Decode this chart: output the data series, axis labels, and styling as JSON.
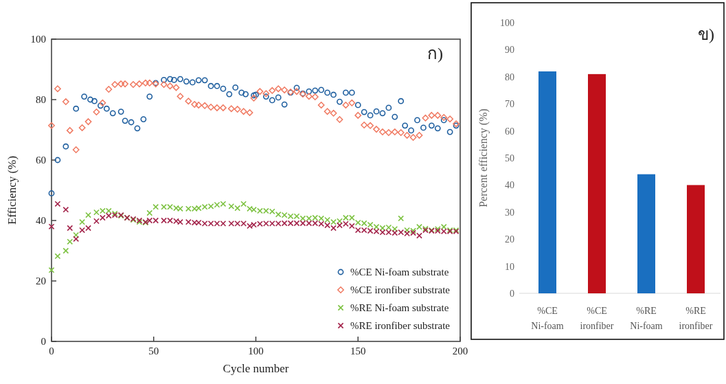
{
  "chart_data": [
    {
      "type": "scatter",
      "xlabel": "Cycle number",
      "ylabel": "Efficiency (%)",
      "xlim": [
        0,
        200
      ],
      "ylim": [
        0,
        100
      ],
      "xticks": [
        0,
        50,
        100,
        150,
        200
      ],
      "yticks": [
        0,
        20,
        40,
        60,
        80,
        100
      ],
      "grid": false,
      "legend": "bottom right",
      "annotations": [
        "ก)"
      ],
      "series": [
        {
          "name": "%CE Ni-foam substrate",
          "color": "#1f5f9f",
          "marker": "circle",
          "x": [
            0,
            3,
            7,
            12,
            16,
            19,
            21,
            24,
            27,
            30,
            34,
            36,
            39,
            42,
            45,
            48,
            51,
            55,
            58,
            60,
            63,
            66,
            69,
            72,
            75,
            78,
            81,
            84,
            87,
            90,
            93,
            95,
            99,
            100,
            105,
            108,
            111,
            114,
            117,
            120,
            123,
            126,
            129,
            132,
            135,
            138,
            141,
            144,
            147,
            150,
            153,
            156,
            159,
            162,
            165,
            168,
            171,
            173,
            176,
            179,
            182,
            186,
            189,
            192,
            195,
            198
          ],
          "values": [
            49,
            60,
            64.5,
            77,
            81,
            80,
            79.5,
            78,
            77,
            75.5,
            76,
            73,
            72.5,
            70.5,
            73.5,
            81,
            85.5,
            86.5,
            86.8,
            86.5,
            86.8,
            86,
            85.7,
            86.4,
            86.4,
            84.5,
            84.5,
            83.6,
            81.8,
            84,
            82.3,
            81.8,
            81.4,
            81.6,
            81,
            79.8,
            80.7,
            78.4,
            82.3,
            83.9,
            82,
            82.7,
            83,
            83.2,
            82.3,
            81.6,
            79.3,
            82.3,
            82.3,
            78.2,
            75.9,
            74.8,
            76.1,
            75.5,
            77.3,
            74.3,
            79.5,
            71.4,
            69.8,
            73.2,
            70.7,
            71.4,
            70.5,
            73.2,
            69.3,
            71.4
          ]
        },
        {
          "name": "%CE ironfiber substrate",
          "color": "#f07a62",
          "marker": "diamond",
          "x": [
            0,
            3,
            7,
            9,
            12,
            15,
            18,
            22,
            25,
            28,
            31,
            34,
            36,
            40,
            43,
            46,
            48,
            51,
            55,
            58,
            61,
            63,
            67,
            70,
            72,
            75,
            78,
            81,
            84,
            88,
            91,
            94,
            97,
            99,
            102,
            105,
            108,
            111,
            114,
            117,
            120,
            123,
            126,
            129,
            132,
            135,
            138,
            141,
            144,
            147,
            150,
            153,
            156,
            159,
            162,
            165,
            168,
            171,
            174,
            177,
            180,
            183,
            186,
            189,
            192,
            195,
            198
          ],
          "values": [
            71.4,
            83.6,
            79.3,
            69.8,
            63.4,
            70.7,
            72.7,
            75.9,
            78.9,
            83.4,
            85,
            85.2,
            85.2,
            85,
            85.2,
            85.5,
            85.5,
            85.2,
            85,
            84.5,
            84,
            81.1,
            79.5,
            78.4,
            78.2,
            78,
            77.5,
            77.3,
            77.3,
            77,
            76.8,
            76.1,
            75.7,
            80.5,
            82.7,
            82,
            83,
            83.6,
            83.2,
            82.5,
            82.7,
            81.8,
            81.1,
            80.9,
            78.2,
            76.1,
            75.5,
            73.4,
            78.2,
            78.9,
            74.8,
            71.6,
            71.4,
            70.2,
            69.3,
            69.1,
            69.3,
            69.1,
            68.2,
            67.5,
            68.2,
            73.9,
            74.8,
            74.8,
            74.1,
            73.6,
            72
          ]
        },
        {
          "name": "%RE Ni-foam substrate",
          "color": "#7dc242",
          "marker": "cross",
          "x": [
            0,
            3,
            7,
            9,
            12,
            15,
            18,
            22,
            25,
            28,
            31,
            34,
            37,
            40,
            43,
            46,
            48,
            51,
            55,
            58,
            61,
            63,
            67,
            70,
            72,
            75,
            78,
            81,
            84,
            88,
            91,
            94,
            97,
            99,
            102,
            105,
            108,
            111,
            114,
            117,
            120,
            123,
            126,
            129,
            132,
            135,
            138,
            141,
            144,
            147,
            150,
            153,
            156,
            159,
            162,
            165,
            168,
            171,
            174,
            177,
            180,
            183,
            186,
            189,
            192,
            195,
            198
          ],
          "values": [
            23.6,
            28.2,
            30,
            33,
            35.2,
            39.5,
            41.8,
            42.7,
            43.2,
            43.2,
            42.3,
            41.6,
            40.9,
            40.2,
            39.5,
            39.3,
            42.5,
            44.5,
            44.5,
            44.5,
            44.1,
            43.9,
            43.9,
            43.9,
            44.1,
            44.5,
            44.7,
            45.2,
            45.5,
            44.7,
            44.1,
            45.5,
            43.9,
            43.6,
            43.2,
            43.2,
            43,
            42,
            41.8,
            41.4,
            41.4,
            40.7,
            40.7,
            40.9,
            40.7,
            40.2,
            39.5,
            39.8,
            40.9,
            40.9,
            39.3,
            39.1,
            38.6,
            37.9,
            37.5,
            37.7,
            37.2,
            40.7,
            36.8,
            36.6,
            37.9,
            37.3,
            36.8,
            37.2,
            37.9,
            36.8,
            36.8
          ]
        },
        {
          "name": "%RE ironfiber substrate",
          "color": "#a3234a",
          "marker": "cross",
          "x": [
            0,
            3,
            7,
            9,
            12,
            15,
            18,
            22,
            25,
            28,
            31,
            34,
            37,
            40,
            43,
            46,
            48,
            51,
            55,
            58,
            61,
            63,
            67,
            70,
            72,
            75,
            78,
            81,
            84,
            88,
            91,
            94,
            97,
            99,
            102,
            105,
            108,
            111,
            114,
            117,
            120,
            123,
            126,
            129,
            132,
            135,
            138,
            141,
            144,
            147,
            150,
            153,
            156,
            159,
            162,
            165,
            168,
            171,
            174,
            177,
            180,
            183,
            186,
            189,
            192,
            195,
            198
          ],
          "values": [
            38,
            45.5,
            43.6,
            37.5,
            33.9,
            36.8,
            37.5,
            39.8,
            40.9,
            41.6,
            41.8,
            41.8,
            40.9,
            40.5,
            40,
            39.5,
            40,
            40,
            40,
            40,
            39.8,
            39.5,
            39.5,
            39.3,
            39.3,
            39,
            39,
            39,
            39,
            39,
            39,
            39,
            38.2,
            38.6,
            38.9,
            39,
            39,
            39,
            39.1,
            39.1,
            39.1,
            39.1,
            39.1,
            39.1,
            38.9,
            38.4,
            37.5,
            38.4,
            38.9,
            38.2,
            36.8,
            36.8,
            36.6,
            36.4,
            36.1,
            36.1,
            35.9,
            36.1,
            35.7,
            35.9,
            35,
            36.8,
            36.6,
            36.6,
            36.4,
            36.4,
            36.4
          ]
        }
      ]
    },
    {
      "type": "bar",
      "ylabel": "Percent efficiency (%)",
      "ylim": [
        0,
        100
      ],
      "yticks": [
        0,
        10,
        20,
        30,
        40,
        50,
        60,
        70,
        80,
        90,
        100
      ],
      "grid": false,
      "annotations": [
        "ข)"
      ],
      "categories": [
        "%CE Ni-foam",
        "%CE ironfiber",
        "%RE Ni-foam",
        "%RE ironfiber"
      ],
      "values": [
        82,
        81,
        44,
        40
      ],
      "colors": [
        "#1a6fc0",
        "#c0101a",
        "#1a6fc0",
        "#c0101a"
      ]
    }
  ]
}
